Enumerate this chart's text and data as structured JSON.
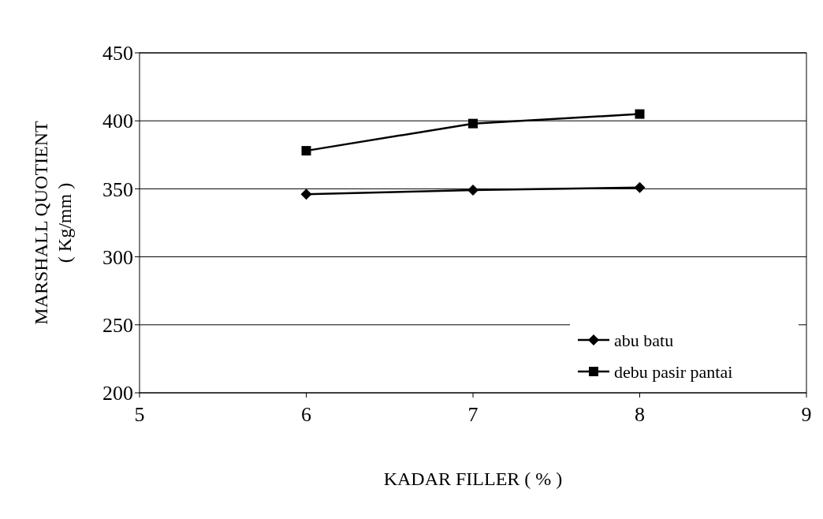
{
  "chart_data": {
    "type": "line",
    "xlabel": "KADAR FILLER ( % )",
    "ylabel": "MARSHALL QUOTIENT\n( Kg/mm )",
    "x": [
      6,
      7,
      8
    ],
    "series": [
      {
        "name": "abu batu",
        "color": "#000000",
        "marker": "diamond",
        "values": [
          346,
          349,
          351
        ]
      },
      {
        "name": "debu pasir pantai",
        "color": "#000000",
        "marker": "square",
        "values": [
          378,
          398,
          405
        ]
      }
    ],
    "xlim": [
      5,
      9
    ],
    "xticks": [
      5,
      6,
      7,
      8,
      9
    ],
    "ylim": [
      200,
      450
    ],
    "yticks": [
      200,
      250,
      300,
      350,
      400,
      450
    ],
    "grid": "y",
    "legend": "bottom right",
    "line_style": "solid"
  }
}
